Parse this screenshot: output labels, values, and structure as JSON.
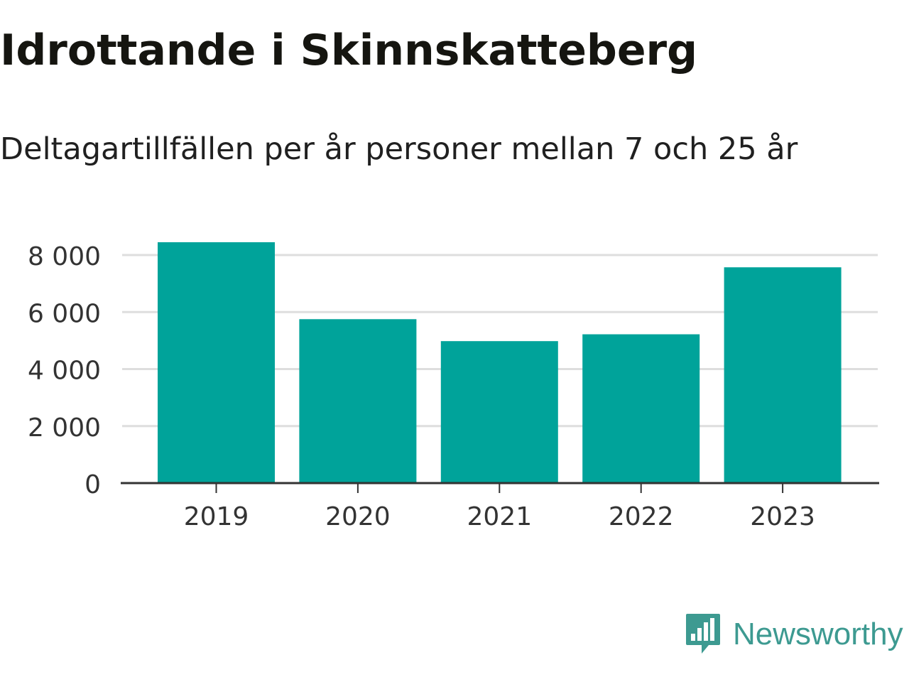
{
  "title": "Idrottande i Skinnskatteberg",
  "subtitle": "Deltagartillfällen per år personer mellan 7 och 25 år",
  "brand": {
    "name": "Newsworthy",
    "color": "#3d9a91"
  },
  "chart_data": {
    "type": "bar",
    "categories": [
      "2019",
      "2020",
      "2021",
      "2022",
      "2023"
    ],
    "values": [
      8450,
      5750,
      4980,
      5220,
      7570
    ],
    "ylim": [
      0,
      8000
    ],
    "yticks": [
      0,
      2000,
      4000,
      6000,
      8000
    ],
    "ytick_labels": [
      "0",
      "2 000",
      "4 000",
      "6 000",
      "8 000"
    ],
    "bar_color": "#00a39a",
    "grid": true,
    "legend": "none"
  }
}
